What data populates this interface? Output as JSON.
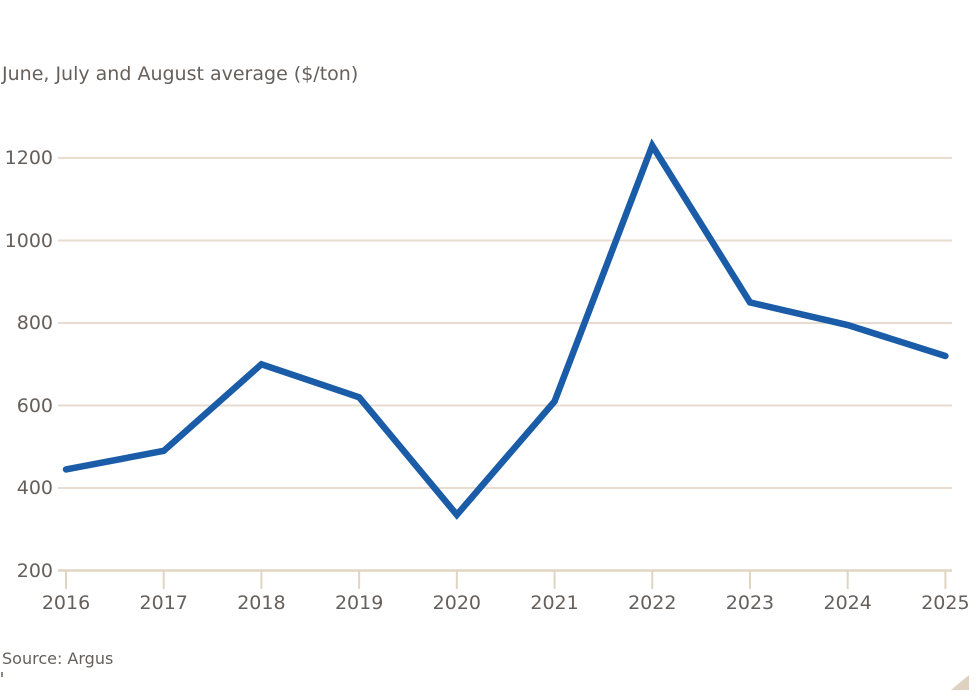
{
  "chart_data": {
    "type": "line",
    "title": "",
    "subtitle": "June, July and August average ($/ton)",
    "categories": [
      "2016",
      "2017",
      "2018",
      "2019",
      "2020",
      "2021",
      "2022",
      "2023",
      "2024",
      "2025"
    ],
    "series": [
      {
        "name": "June, July and August average ($/ton)",
        "values": [
          445,
          490,
          700,
          620,
          335,
          610,
          1230,
          850,
          795,
          720
        ]
      }
    ],
    "xlabel": "",
    "ylabel": "$/ton",
    "yticks": [
      200,
      400,
      600,
      800,
      1000,
      1200
    ],
    "ylim": [
      200,
      1250
    ],
    "grid": "horizontal",
    "legend": "none",
    "source": "Source: Argus",
    "colors": {
      "line": "#1a5ca7",
      "grid": "#e8dcd0",
      "axis": "#e0d5c2",
      "text": "#66605c",
      "background": "#ffffff"
    }
  }
}
